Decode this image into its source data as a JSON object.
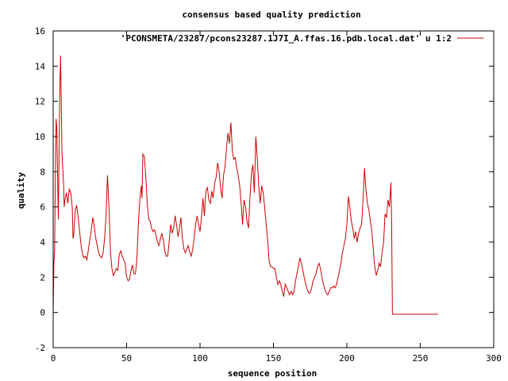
{
  "chart_data": {
    "type": "line",
    "title": "consensus based quality prediction",
    "xlabel": "sequence position",
    "ylabel": "quality",
    "xlim": [
      0,
      300
    ],
    "ylim": [
      -2,
      16
    ],
    "xticks": [
      0,
      50,
      100,
      150,
      200,
      250,
      300
    ],
    "yticks": [
      -2,
      0,
      2,
      4,
      6,
      8,
      10,
      12,
      14,
      16
    ],
    "grid": false,
    "legend_position": "top-right",
    "series": [
      {
        "name": "'PCONSMETA/23287/pcons23287.1J7I_A.ffas.16.pdb.local.dat' u 1:2",
        "color": "#cc0000",
        "points": [
          [
            0,
            0
          ],
          [
            0.5,
            2.8
          ],
          [
            1,
            3.5
          ],
          [
            1.5,
            8
          ],
          [
            2,
            11
          ],
          [
            2.5,
            10.5
          ],
          [
            3,
            8
          ],
          [
            3.5,
            5.3
          ],
          [
            4,
            9
          ],
          [
            4.5,
            12.5
          ],
          [
            5,
            14.6
          ],
          [
            5.5,
            12
          ],
          [
            6,
            9
          ],
          [
            7,
            7.4
          ],
          [
            7.5,
            6
          ],
          [
            8,
            6.4
          ],
          [
            9,
            6.8
          ],
          [
            10,
            6.2
          ],
          [
            11,
            7
          ],
          [
            12,
            6.8
          ],
          [
            13,
            6
          ],
          [
            13.5,
            4.2
          ],
          [
            14,
            4.4
          ],
          [
            15,
            5.8
          ],
          [
            16,
            6.1
          ],
          [
            17,
            5.4
          ],
          [
            18,
            4.6
          ],
          [
            19,
            3.8
          ],
          [
            20,
            3.3
          ],
          [
            21,
            3.1
          ],
          [
            22,
            3.2
          ],
          [
            23,
            3.0
          ],
          [
            24,
            3.6
          ],
          [
            25,
            4.2
          ],
          [
            26,
            4.7
          ],
          [
            27,
            5.4
          ],
          [
            28,
            4.9
          ],
          [
            29,
            4.2
          ],
          [
            30,
            3.8
          ],
          [
            31,
            3.4
          ],
          [
            32,
            3.2
          ],
          [
            33,
            3.1
          ],
          [
            34,
            3.4
          ],
          [
            35,
            4.2
          ],
          [
            36,
            5.5
          ],
          [
            37,
            7.8
          ],
          [
            38,
            6
          ],
          [
            39,
            3.4
          ],
          [
            40,
            2.5
          ],
          [
            41,
            2.1
          ],
          [
            42,
            2.3
          ],
          [
            43,
            2.5
          ],
          [
            44,
            2.4
          ],
          [
            45,
            3.3
          ],
          [
            46,
            3.5
          ],
          [
            47,
            3.2
          ],
          [
            48,
            3.0
          ],
          [
            49,
            2.8
          ],
          [
            50,
            2.0
          ],
          [
            51,
            1.8
          ],
          [
            52,
            1.9
          ],
          [
            53,
            2.4
          ],
          [
            54,
            2.7
          ],
          [
            55,
            2.2
          ],
          [
            56,
            2.2
          ],
          [
            57,
            3
          ],
          [
            58,
            5
          ],
          [
            59,
            6.4
          ],
          [
            60,
            7.2
          ],
          [
            60.5,
            6.5
          ],
          [
            61,
            9
          ],
          [
            62,
            8.9
          ],
          [
            63,
            7.8
          ],
          [
            64,
            6.3
          ],
          [
            65,
            5.3
          ],
          [
            66,
            5.2
          ],
          [
            67,
            4.8
          ],
          [
            68,
            4.6
          ],
          [
            69,
            4.7
          ],
          [
            70,
            4.4
          ],
          [
            71,
            4.0
          ],
          [
            72,
            3.8
          ],
          [
            73,
            4.2
          ],
          [
            74,
            4.5
          ],
          [
            75,
            4.1
          ],
          [
            76,
            3.5
          ],
          [
            77,
            3.2
          ],
          [
            78,
            3.2
          ],
          [
            79,
            4.0
          ],
          [
            80,
            5.0
          ],
          [
            81,
            4.5
          ],
          [
            82,
            4.8
          ],
          [
            83,
            5.5
          ],
          [
            84,
            5.0
          ],
          [
            85,
            4.3
          ],
          [
            86,
            4.8
          ],
          [
            87,
            5.4
          ],
          [
            88,
            4.2
          ],
          [
            89,
            3.6
          ],
          [
            90,
            3.4
          ],
          [
            91,
            3.6
          ],
          [
            92,
            3.8
          ],
          [
            93,
            3.4
          ],
          [
            94,
            3.2
          ],
          [
            95,
            3.6
          ],
          [
            96,
            4.2
          ],
          [
            97,
            5.0
          ],
          [
            98,
            5.5
          ],
          [
            99,
            5.0
          ],
          [
            100,
            4.6
          ],
          [
            101,
            5.4
          ],
          [
            102,
            6.5
          ],
          [
            103,
            5.5
          ],
          [
            104,
            6.9
          ],
          [
            105,
            7.1
          ],
          [
            106,
            6.4
          ],
          [
            107,
            6.2
          ],
          [
            108,
            6.9
          ],
          [
            109,
            6.5
          ],
          [
            110,
            7.4
          ],
          [
            111,
            7.7
          ],
          [
            112,
            8.5
          ],
          [
            113,
            8.0
          ],
          [
            114,
            7.1
          ],
          [
            115,
            6.5
          ],
          [
            116,
            7.8
          ],
          [
            117,
            8.3
          ],
          [
            118,
            9.3
          ],
          [
            119,
            10.2
          ],
          [
            120,
            9.6
          ],
          [
            121,
            10.8
          ],
          [
            122,
            9.2
          ],
          [
            123,
            8.7
          ],
          [
            124,
            8.8
          ],
          [
            125,
            8.2
          ],
          [
            126,
            7.8
          ],
          [
            127,
            7.2
          ],
          [
            128,
            6.2
          ],
          [
            129,
            5.0
          ],
          [
            130,
            6.4
          ],
          [
            131,
            6.0
          ],
          [
            132,
            5.2
          ],
          [
            133,
            4.8
          ],
          [
            134,
            6.5
          ],
          [
            135,
            7.9
          ],
          [
            136,
            8.4
          ],
          [
            137,
            6.8
          ],
          [
            138,
            10
          ],
          [
            139,
            8.8
          ],
          [
            140,
            7.2
          ],
          [
            141,
            6.2
          ],
          [
            142,
            7.2
          ],
          [
            143,
            6.8
          ],
          [
            144,
            6.0
          ],
          [
            145,
            5.0
          ],
          [
            146,
            4.2
          ],
          [
            147,
            3.0
          ],
          [
            148,
            2.6
          ],
          [
            149,
            2.6
          ],
          [
            150,
            2.5
          ],
          [
            151,
            2.5
          ],
          [
            152,
            2.0
          ],
          [
            153,
            1.6
          ],
          [
            154,
            1.8
          ],
          [
            155,
            1.6
          ],
          [
            156,
            1.2
          ],
          [
            157,
            0.9
          ],
          [
            158,
            1.6
          ],
          [
            159,
            1.4
          ],
          [
            160,
            1.2
          ],
          [
            161,
            1.0
          ],
          [
            162,
            1.2
          ],
          [
            163,
            1.0
          ],
          [
            164,
            1.2
          ],
          [
            165,
            1.8
          ],
          [
            166,
            2.2
          ],
          [
            167,
            2.6
          ],
          [
            168,
            3.1
          ],
          [
            169,
            2.8
          ],
          [
            170,
            2.4
          ],
          [
            171,
            2.0
          ],
          [
            172,
            1.6
          ],
          [
            173,
            1.3
          ],
          [
            174,
            1.1
          ],
          [
            175,
            1.1
          ],
          [
            176,
            1.4
          ],
          [
            177,
            1.8
          ],
          [
            178,
            2.0
          ],
          [
            179,
            2.2
          ],
          [
            180,
            2.6
          ],
          [
            181,
            2.8
          ],
          [
            182,
            2.5
          ],
          [
            183,
            2.0
          ],
          [
            184,
            1.6
          ],
          [
            185,
            1.3
          ],
          [
            186,
            1.1
          ],
          [
            187,
            1.0
          ],
          [
            188,
            1.2
          ],
          [
            189,
            1.4
          ],
          [
            190,
            1.4
          ],
          [
            191,
            1.5
          ],
          [
            192,
            1.4
          ],
          [
            193,
            1.6
          ],
          [
            194,
            2.0
          ],
          [
            195,
            2.4
          ],
          [
            196,
            2.8
          ],
          [
            197,
            3.4
          ],
          [
            198,
            3.8
          ],
          [
            199,
            4.2
          ],
          [
            200,
            5.0
          ],
          [
            201,
            6.6
          ],
          [
            202,
            6.0
          ],
          [
            203,
            5.2
          ],
          [
            204,
            4.8
          ],
          [
            205,
            4.2
          ],
          [
            206,
            4.6
          ],
          [
            207,
            4.0
          ],
          [
            208,
            4.5
          ],
          [
            209,
            4.8
          ],
          [
            210,
            5.0
          ],
          [
            211,
            6.4
          ],
          [
            212,
            8.2
          ],
          [
            213,
            7.0
          ],
          [
            214,
            6.2
          ],
          [
            215,
            5.8
          ],
          [
            216,
            5.2
          ],
          [
            217,
            4.6
          ],
          [
            218,
            3.6
          ],
          [
            219,
            2.6
          ],
          [
            220,
            2.1
          ],
          [
            221,
            2.4
          ],
          [
            222,
            2.8
          ],
          [
            223,
            2.6
          ],
          [
            224,
            3.4
          ],
          [
            225,
            4.0
          ],
          [
            226,
            5.6
          ],
          [
            227,
            5.4
          ],
          [
            228,
            6.4
          ],
          [
            229,
            6.0
          ],
          [
            230,
            7.4
          ],
          [
            230.5,
            5
          ],
          [
            231,
            -0.1
          ],
          [
            240,
            -0.1
          ],
          [
            250,
            -0.1
          ],
          [
            262,
            -0.1
          ]
        ]
      }
    ]
  }
}
